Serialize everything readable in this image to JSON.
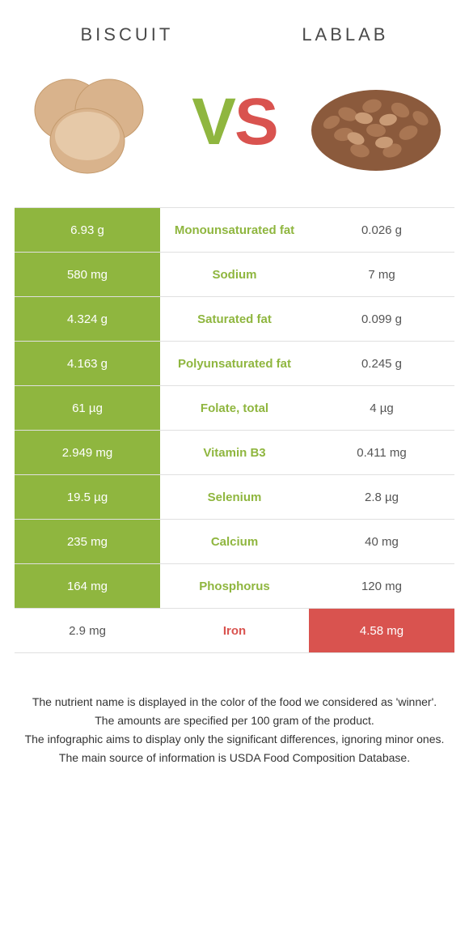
{
  "colors": {
    "green": "#8fb63f",
    "red": "#d9534f",
    "row_border": "#e0e0e0",
    "text_dark": "#333333",
    "text_gray": "#555555",
    "white": "#ffffff"
  },
  "typography": {
    "header_fontsize": 22,
    "header_letter_spacing": 4,
    "vs_fontsize": 82,
    "cell_fontsize": 15,
    "footnote_fontsize": 14
  },
  "header": {
    "left_title": "BISCUIT",
    "right_title": "LABLAB",
    "vs_v": "V",
    "vs_s": "S"
  },
  "rows": [
    {
      "left": "6.93 g",
      "label": "Monounsaturated fat",
      "right": "0.026 g",
      "winner": "left"
    },
    {
      "left": "580 mg",
      "label": "Sodium",
      "right": "7 mg",
      "winner": "left"
    },
    {
      "left": "4.324 g",
      "label": "Saturated fat",
      "right": "0.099 g",
      "winner": "left"
    },
    {
      "left": "4.163 g",
      "label": "Polyunsaturated fat",
      "right": "0.245 g",
      "winner": "left"
    },
    {
      "left": "61 µg",
      "label": "Folate, total",
      "right": "4 µg",
      "winner": "left"
    },
    {
      "left": "2.949 mg",
      "label": "Vitamin B3",
      "right": "0.411 mg",
      "winner": "left"
    },
    {
      "left": "19.5 µg",
      "label": "Selenium",
      "right": "2.8 µg",
      "winner": "left"
    },
    {
      "left": "235 mg",
      "label": "Calcium",
      "right": "40 mg",
      "winner": "left"
    },
    {
      "left": "164 mg",
      "label": "Phosphorus",
      "right": "120 mg",
      "winner": "left"
    },
    {
      "left": "2.9 mg",
      "label": "Iron",
      "right": "4.58 mg",
      "winner": "right"
    }
  ],
  "footnotes": [
    "The nutrient name is displayed in the color of the food we considered as 'winner'.",
    "The amounts are specified per 100 gram of the product.",
    "The infographic aims to display only the significant differences, ignoring minor ones.",
    "The main source of information is USDA Food Composition Database."
  ]
}
